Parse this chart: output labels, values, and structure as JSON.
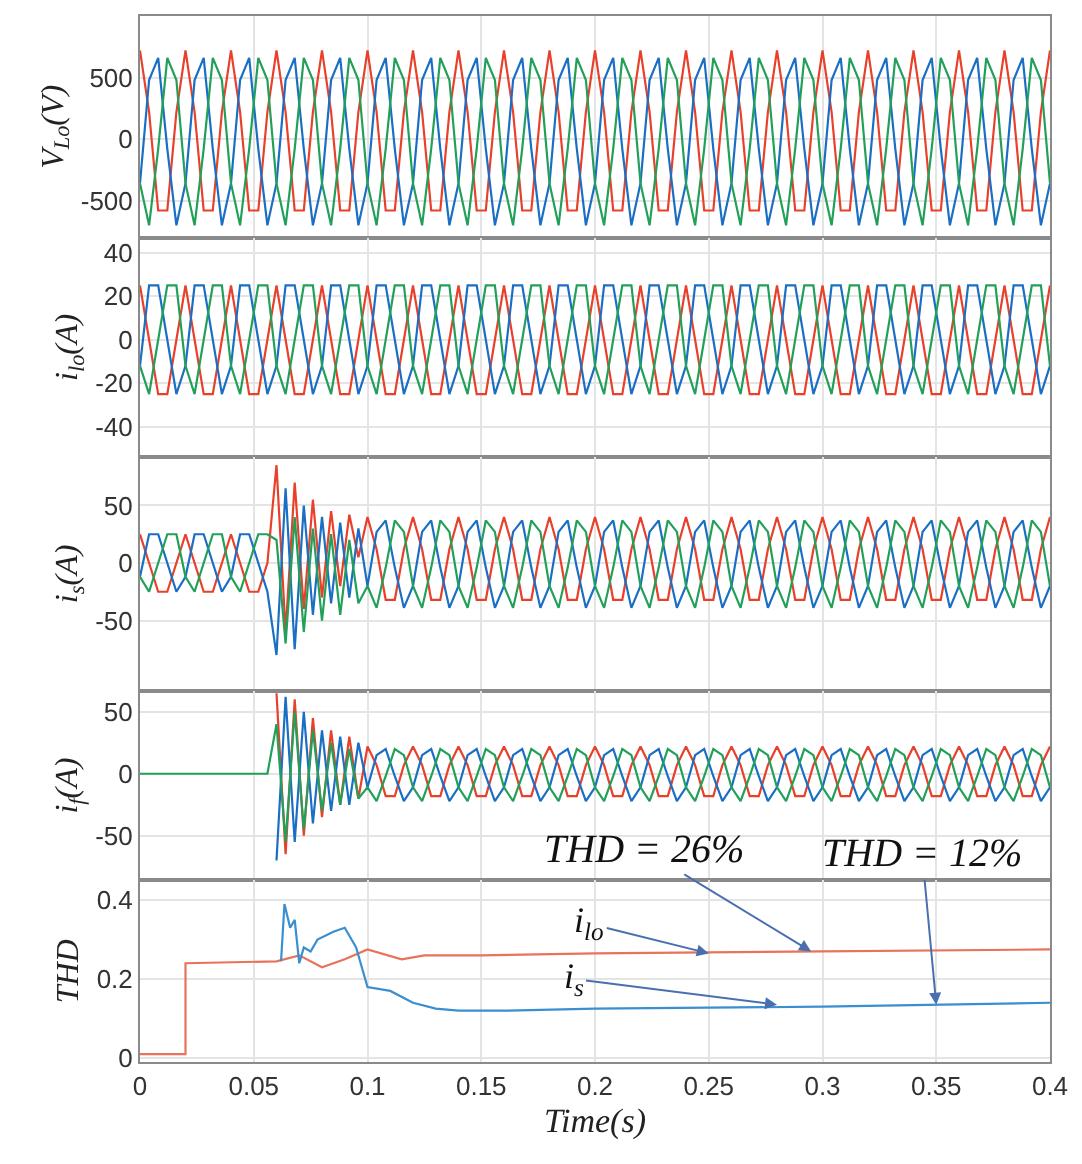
{
  "chart_data": [
    {
      "type": "line",
      "ylabel": "V$_{Lo}$(V)",
      "tick_labels": "y",
      "grid": true,
      "xlim": [
        0,
        0.4
      ],
      "xticks": [
        0,
        0.05,
        0.1,
        0.15,
        0.2,
        0.25,
        0.3,
        0.35,
        0.4
      ],
      "ylim": [
        -800,
        1000
      ],
      "yticks": [
        -500,
        0,
        500
      ],
      "x": [
        0,
        0.004,
        0.008,
        0.012,
        0.016,
        0.02,
        0.024,
        0.028,
        0.032,
        0.036,
        0.04,
        0.044,
        0.048,
        0.052,
        0.056,
        0.06,
        0.064,
        0.068,
        0.072,
        0.076,
        0.08,
        0.084,
        0.088,
        0.092,
        0.096,
        0.1,
        0.104,
        0.108,
        0.112,
        0.116,
        0.12,
        0.124,
        0.128,
        0.132,
        0.136,
        0.14,
        0.144,
        0.148,
        0.152,
        0.156,
        0.16,
        0.164,
        0.168,
        0.172,
        0.176,
        0.18,
        0.184,
        0.188,
        0.192,
        0.196,
        0.2,
        0.204,
        0.208,
        0.212,
        0.216,
        0.22,
        0.224,
        0.228,
        0.232,
        0.236,
        0.24,
        0.244,
        0.248,
        0.252,
        0.256,
        0.26,
        0.264,
        0.268,
        0.272,
        0.276,
        0.28,
        0.284,
        0.288,
        0.292,
        0.296,
        0.3,
        0.304,
        0.308,
        0.312,
        0.316,
        0.32,
        0.324,
        0.328,
        0.332,
        0.336,
        0.34,
        0.344,
        0.348,
        0.352,
        0.356,
        0.36,
        0.364,
        0.368,
        0.372,
        0.376,
        0.38,
        0.384,
        0.388,
        0.392,
        0.396,
        0.4
      ],
      "series": [
        {
          "color": "#e8402a",
          "values": [
            720,
            220,
            -580,
            -580,
            220,
            720,
            220,
            -580,
            -580,
            220,
            720,
            220,
            -580,
            -580,
            220,
            720,
            220,
            -580,
            -580,
            220,
            720,
            220,
            -580,
            -580,
            220,
            720,
            220,
            -580,
            -580,
            220,
            720,
            220,
            -580,
            -580,
            220,
            720,
            220,
            -580,
            -580,
            220,
            720,
            220,
            -580,
            -580,
            220,
            720,
            220,
            -580,
            -580,
            220,
            720,
            220,
            -580,
            -580,
            220,
            720,
            220,
            -580,
            -580,
            220,
            720,
            220,
            -580,
            -580,
            220,
            720,
            220,
            -580,
            -580,
            220,
            720,
            220,
            -580,
            -580,
            220,
            720,
            220,
            -580,
            -580,
            220,
            720,
            220,
            -580,
            -580,
            220,
            720,
            220,
            -580,
            -580,
            220,
            720,
            220,
            -580,
            -580,
            220,
            720,
            220,
            -580,
            -580,
            220,
            720
          ]
        },
        {
          "color": "#1a6fc4",
          "values": [
            -360,
            480,
            660,
            -80,
            -700,
            -360,
            480,
            660,
            -80,
            -700,
            -360,
            480,
            660,
            -80,
            -700,
            -360,
            480,
            660,
            -80,
            -700,
            -360,
            480,
            660,
            -80,
            -700,
            -360,
            480,
            660,
            -80,
            -700,
            -360,
            480,
            660,
            -80,
            -700,
            -360,
            480,
            660,
            -80,
            -700,
            -360,
            480,
            660,
            -80,
            -700,
            -360,
            480,
            660,
            -80,
            -700,
            -360,
            480,
            660,
            -80,
            -700,
            -360,
            480,
            660,
            -80,
            -700,
            -360,
            480,
            660,
            -80,
            -700,
            -360,
            480,
            660,
            -80,
            -700,
            -360,
            480,
            660,
            -80,
            -700,
            -360,
            480,
            660,
            -80,
            -700,
            -360,
            480,
            660,
            -80,
            -700,
            -360,
            480,
            660,
            -80,
            -700,
            -360,
            480,
            660,
            -80,
            -700,
            -360,
            480,
            660,
            -80,
            -700,
            -360
          ]
        },
        {
          "color": "#22a05a",
          "values": [
            -360,
            -700,
            -80,
            660,
            480,
            -360,
            -700,
            -80,
            660,
            480,
            -360,
            -700,
            -80,
            660,
            480,
            -360,
            -700,
            -80,
            660,
            480,
            -360,
            -700,
            -80,
            660,
            480,
            -360,
            -700,
            -80,
            660,
            480,
            -360,
            -700,
            -80,
            660,
            480,
            -360,
            -700,
            -80,
            660,
            480,
            -360,
            -700,
            -80,
            660,
            480,
            -360,
            -700,
            -80,
            660,
            480,
            -360,
            -700,
            -80,
            660,
            480,
            -360,
            -700,
            -80,
            660,
            480,
            -360,
            -700,
            -80,
            660,
            480,
            -360,
            -700,
            -80,
            660,
            480,
            -360,
            -700,
            -80,
            660,
            480,
            -360,
            -700,
            -80,
            660,
            480,
            -360,
            -700,
            -80,
            660,
            480,
            -360,
            -700,
            -80,
            660,
            480,
            -360,
            -700,
            -80,
            660,
            480,
            -360,
            -700,
            -80,
            660,
            480,
            -360
          ]
        }
      ]
    },
    {
      "type": "line",
      "ylabel": "i$_{lo}$(A)",
      "tick_labels": "y",
      "grid": true,
      "xlim": [
        0,
        0.4
      ],
      "xticks": [
        0,
        0.05,
        0.1,
        0.15,
        0.2,
        0.25,
        0.3,
        0.35,
        0.4
      ],
      "ylim": [
        -54,
        47
      ],
      "yticks": [
        -40,
        -20,
        0,
        20,
        40
      ],
      "x": [
        0,
        0.004,
        0.008,
        0.012,
        0.016,
        0.02,
        0.024,
        0.028,
        0.032,
        0.036,
        0.04,
        0.044,
        0.048,
        0.052,
        0.056,
        0.06,
        0.064,
        0.068,
        0.072,
        0.076,
        0.08,
        0.084,
        0.088,
        0.092,
        0.096,
        0.1,
        0.104,
        0.108,
        0.112,
        0.116,
        0.12,
        0.124,
        0.128,
        0.132,
        0.136,
        0.14,
        0.144,
        0.148,
        0.152,
        0.156,
        0.16,
        0.164,
        0.168,
        0.172,
        0.176,
        0.18,
        0.184,
        0.188,
        0.192,
        0.196,
        0.2,
        0.204,
        0.208,
        0.212,
        0.216,
        0.22,
        0.224,
        0.228,
        0.232,
        0.236,
        0.24,
        0.244,
        0.248,
        0.252,
        0.256,
        0.26,
        0.264,
        0.268,
        0.272,
        0.276,
        0.28,
        0.284,
        0.288,
        0.292,
        0.296,
        0.3,
        0.304,
        0.308,
        0.312,
        0.316,
        0.32,
        0.324,
        0.328,
        0.332,
        0.336,
        0.34,
        0.344,
        0.348,
        0.352,
        0.356,
        0.36,
        0.364,
        0.368,
        0.372,
        0.376,
        0.38,
        0.384,
        0.388,
        0.392,
        0.396,
        0.4
      ],
      "series": [
        {
          "color": "#e8402a",
          "values": [
            25,
            0,
            -25,
            -25,
            0,
            25,
            0,
            -25,
            -25,
            0,
            25,
            0,
            -25,
            -25,
            0,
            25,
            0,
            -25,
            -25,
            0,
            25,
            0,
            -25,
            -25,
            0,
            25,
            0,
            -25,
            -25,
            0,
            25,
            0,
            -25,
            -25,
            0,
            25,
            0,
            -25,
            -25,
            0,
            25,
            0,
            -25,
            -25,
            0,
            25,
            0,
            -25,
            -25,
            0,
            25,
            0,
            -25,
            -25,
            0,
            25,
            0,
            -25,
            -25,
            0,
            25,
            0,
            -25,
            -25,
            0,
            25,
            0,
            -25,
            -25,
            0,
            25,
            0,
            -25,
            -25,
            0,
            25,
            0,
            -25,
            -25,
            0,
            25,
            0,
            -25,
            -25,
            0,
            25,
            0,
            -25,
            -25,
            0,
            25,
            0,
            -25,
            -25,
            0,
            25,
            0,
            -25,
            -25,
            0,
            25
          ]
        },
        {
          "color": "#1a6fc4",
          "values": [
            -12,
            25,
            25,
            0,
            -25,
            -12,
            25,
            25,
            0,
            -25,
            -12,
            25,
            25,
            0,
            -25,
            -12,
            25,
            25,
            0,
            -25,
            -12,
            25,
            25,
            0,
            -25,
            -12,
            25,
            25,
            0,
            -25,
            -12,
            25,
            25,
            0,
            -25,
            -12,
            25,
            25,
            0,
            -25,
            -12,
            25,
            25,
            0,
            -25,
            -12,
            25,
            25,
            0,
            -25,
            -12,
            25,
            25,
            0,
            -25,
            -12,
            25,
            25,
            0,
            -25,
            -12,
            25,
            25,
            0,
            -25,
            -12,
            25,
            25,
            0,
            -25,
            -12,
            25,
            25,
            0,
            -25,
            -12,
            25,
            25,
            0,
            -25,
            -12,
            25,
            25,
            0,
            -25,
            -12,
            25,
            25,
            0,
            -25,
            -12,
            25,
            25,
            0,
            -25,
            -12,
            25,
            25,
            0,
            -25,
            -12
          ]
        },
        {
          "color": "#22a05a",
          "values": [
            -12,
            -25,
            0,
            25,
            25,
            -12,
            -25,
            0,
            25,
            25,
            -12,
            -25,
            0,
            25,
            25,
            -12,
            -25,
            0,
            25,
            25,
            -12,
            -25,
            0,
            25,
            25,
            -12,
            -25,
            0,
            25,
            25,
            -12,
            -25,
            0,
            25,
            25,
            -12,
            -25,
            0,
            25,
            25,
            -12,
            -25,
            0,
            25,
            25,
            -12,
            -25,
            0,
            25,
            25,
            -12,
            -25,
            0,
            25,
            25,
            -12,
            -25,
            0,
            25,
            25,
            -12,
            -25,
            0,
            25,
            25,
            -12,
            -25,
            0,
            25,
            25,
            -12,
            -25,
            0,
            25,
            25,
            -12,
            -25,
            0,
            25,
            25,
            -12,
            -25,
            0,
            25,
            25,
            -12,
            -25,
            0,
            25,
            25,
            -12,
            -25,
            0,
            25,
            25,
            -12,
            -25,
            0,
            25,
            25,
            -12
          ]
        }
      ]
    },
    {
      "type": "line",
      "ylabel": "i$_{s}$(A)",
      "tick_labels": "y",
      "grid": true,
      "xlim": [
        0,
        0.4
      ],
      "xticks": [
        0,
        0.05,
        0.1,
        0.15,
        0.2,
        0.25,
        0.3,
        0.35,
        0.4
      ],
      "ylim": [
        -111,
        92
      ],
      "yticks": [
        -50,
        0,
        50
      ],
      "x": [
        0,
        0.004,
        0.008,
        0.012,
        0.016,
        0.02,
        0.024,
        0.028,
        0.032,
        0.036,
        0.04,
        0.044,
        0.048,
        0.052,
        0.056,
        0.06,
        0.064,
        0.068,
        0.072,
        0.076,
        0.08,
        0.084,
        0.088,
        0.092,
        0.096,
        0.1,
        0.104,
        0.108,
        0.112,
        0.116,
        0.12,
        0.124,
        0.128,
        0.132,
        0.136,
        0.14,
        0.144,
        0.148,
        0.152,
        0.156,
        0.16,
        0.164,
        0.168,
        0.172,
        0.176,
        0.18,
        0.184,
        0.188,
        0.192,
        0.196,
        0.2,
        0.204,
        0.208,
        0.212,
        0.216,
        0.22,
        0.224,
        0.228,
        0.232,
        0.236,
        0.24,
        0.244,
        0.248,
        0.252,
        0.256,
        0.26,
        0.264,
        0.268,
        0.272,
        0.276,
        0.28,
        0.284,
        0.288,
        0.292,
        0.296,
        0.3,
        0.304,
        0.308,
        0.312,
        0.316,
        0.32,
        0.324,
        0.328,
        0.332,
        0.336,
        0.34,
        0.344,
        0.348,
        0.352,
        0.356,
        0.36,
        0.364,
        0.368,
        0.372,
        0.376,
        0.38,
        0.384,
        0.388,
        0.392,
        0.396,
        0.4
      ],
      "series": [
        {
          "color": "#e8402a",
          "values": [
            25,
            0,
            -25,
            -25,
            0,
            25,
            0,
            -25,
            -25,
            0,
            25,
            0,
            -25,
            -25,
            0,
            85,
            -60,
            70,
            -40,
            55,
            -30,
            45,
            -20,
            42,
            5,
            40,
            12,
            -32,
            -32,
            12,
            40,
            12,
            -32,
            -32,
            12,
            40,
            12,
            -32,
            -32,
            12,
            40,
            12,
            -32,
            -32,
            12,
            40,
            12,
            -32,
            -32,
            12,
            40,
            12,
            -32,
            -32,
            12,
            40,
            12,
            -32,
            -32,
            12,
            40,
            12,
            -32,
            -32,
            12,
            40,
            12,
            -32,
            -32,
            12,
            40,
            12,
            -32,
            -32,
            12,
            40,
            12,
            -32,
            -32,
            12,
            40,
            12,
            -32,
            -32,
            12,
            40,
            12,
            -32,
            -32,
            12,
            40,
            12,
            -32,
            -32,
            12,
            40,
            12,
            -32,
            -32,
            12,
            40
          ]
        },
        {
          "color": "#1a6fc4",
          "values": [
            -12,
            25,
            25,
            0,
            -25,
            -12,
            25,
            25,
            0,
            -25,
            -12,
            25,
            25,
            0,
            -25,
            -80,
            65,
            -75,
            50,
            -45,
            40,
            -35,
            35,
            -30,
            30,
            -20,
            27,
            37,
            -4,
            -39,
            -20,
            27,
            37,
            -4,
            -39,
            -20,
            27,
            37,
            -4,
            -39,
            -20,
            27,
            37,
            -4,
            -39,
            -20,
            27,
            37,
            -4,
            -39,
            -20,
            27,
            37,
            -4,
            -39,
            -20,
            27,
            37,
            -4,
            -39,
            -20,
            27,
            37,
            -4,
            -39,
            -20,
            27,
            37,
            -4,
            -39,
            -20,
            27,
            37,
            -4,
            -39,
            -20,
            27,
            37,
            -4,
            -39,
            -20,
            27,
            37,
            -4,
            -39,
            -20,
            27,
            37,
            -4,
            -39,
            -20,
            27,
            37,
            -4,
            -39,
            -20,
            27,
            37,
            -4,
            -39,
            -20
          ]
        },
        {
          "color": "#22a05a",
          "values": [
            -12,
            -25,
            0,
            25,
            25,
            -12,
            -25,
            0,
            25,
            25,
            -12,
            -25,
            0,
            25,
            25,
            20,
            -70,
            40,
            -60,
            30,
            -50,
            25,
            -45,
            20,
            -35,
            -20,
            -39,
            -4,
            37,
            27,
            -20,
            -39,
            -4,
            37,
            27,
            -20,
            -39,
            -4,
            37,
            27,
            -20,
            -39,
            -4,
            37,
            27,
            -20,
            -39,
            -4,
            37,
            27,
            -20,
            -39,
            -4,
            37,
            27,
            -20,
            -39,
            -4,
            37,
            27,
            -20,
            -39,
            -4,
            37,
            27,
            -20,
            -39,
            -4,
            37,
            27,
            -20,
            -39,
            -4,
            37,
            27,
            -20,
            -39,
            -4,
            37,
            27,
            -20,
            -39,
            -4,
            37,
            27,
            -20,
            -39,
            -4,
            37,
            27,
            -20,
            -39,
            -4,
            37,
            27,
            -20,
            -39,
            -4,
            37,
            27,
            -20
          ]
        }
      ]
    },
    {
      "type": "line",
      "ylabel": "i$_{f}$(A)",
      "tick_labels": "y",
      "grid": true,
      "xlim": [
        0,
        0.4
      ],
      "xticks": [
        0,
        0.05,
        0.1,
        0.15,
        0.2,
        0.25,
        0.3,
        0.35,
        0.4
      ],
      "ylim": [
        -86,
        67
      ],
      "yticks": [
        -50,
        0,
        50
      ],
      "x": [
        0,
        0.004,
        0.008,
        0.012,
        0.016,
        0.02,
        0.024,
        0.028,
        0.032,
        0.036,
        0.04,
        0.044,
        0.048,
        0.052,
        0.056,
        0.06,
        0.064,
        0.068,
        0.072,
        0.076,
        0.08,
        0.084,
        0.088,
        0.092,
        0.096,
        0.1,
        0.104,
        0.108,
        0.112,
        0.116,
        0.12,
        0.124,
        0.128,
        0.132,
        0.136,
        0.14,
        0.144,
        0.148,
        0.152,
        0.156,
        0.16,
        0.164,
        0.168,
        0.172,
        0.176,
        0.18,
        0.184,
        0.188,
        0.192,
        0.196,
        0.2,
        0.204,
        0.208,
        0.212,
        0.216,
        0.22,
        0.224,
        0.228,
        0.232,
        0.236,
        0.24,
        0.244,
        0.248,
        0.252,
        0.256,
        0.26,
        0.264,
        0.268,
        0.272,
        0.276,
        0.28,
        0.284,
        0.288,
        0.292,
        0.296,
        0.3,
        0.304,
        0.308,
        0.312,
        0.316,
        0.32,
        0.324,
        0.328,
        0.332,
        0.336,
        0.34,
        0.344,
        0.348,
        0.352,
        0.356,
        0.36,
        0.364,
        0.368,
        0.372,
        0.376,
        0.38,
        0.384,
        0.388,
        0.392,
        0.396,
        0.4
      ],
      "series": [
        {
          "color": "#e8402a",
          "values": [
            null,
            null,
            null,
            null,
            null,
            null,
            null,
            null,
            null,
            null,
            null,
            null,
            null,
            null,
            null,
            65,
            -65,
            60,
            -50,
            45,
            -35,
            35,
            -25,
            30,
            -20,
            22,
            7,
            -18,
            -18,
            7,
            22,
            7,
            -18,
            -18,
            7,
            22,
            7,
            -18,
            -18,
            7,
            22,
            7,
            -18,
            -18,
            7,
            22,
            7,
            -18,
            -18,
            7,
            22,
            7,
            -18,
            -18,
            7,
            22,
            7,
            -18,
            -18,
            7,
            22,
            7,
            -18,
            -18,
            7,
            22,
            7,
            -18,
            -18,
            7,
            22,
            7,
            -18,
            -18,
            7,
            22,
            7,
            -18,
            -18,
            7,
            22,
            7,
            -18,
            -18,
            7,
            22,
            7,
            -18,
            -18,
            7,
            22,
            7,
            -18,
            -18,
            7,
            22,
            7,
            -18,
            -18,
            7,
            22
          ]
        },
        {
          "color": "#1a6fc4",
          "values": [
            null,
            null,
            null,
            null,
            null,
            null,
            null,
            null,
            null,
            null,
            null,
            null,
            null,
            null,
            null,
            -70,
            62,
            -55,
            50,
            -40,
            35,
            -30,
            30,
            -25,
            25,
            -11,
            15,
            20,
            -2,
            -22,
            -11,
            15,
            20,
            -2,
            -22,
            -11,
            15,
            20,
            -2,
            -22,
            -11,
            15,
            20,
            -2,
            -22,
            -11,
            15,
            20,
            -2,
            -22,
            -11,
            15,
            20,
            -2,
            -22,
            -11,
            15,
            20,
            -2,
            -22,
            -11,
            15,
            20,
            -2,
            -22,
            -11,
            15,
            20,
            -2,
            -22,
            -11,
            15,
            20,
            -2,
            -22,
            -11,
            15,
            20,
            -2,
            -22,
            -11,
            15,
            20,
            -2,
            -22,
            -11,
            15,
            20,
            -2,
            -22,
            -11,
            15,
            20,
            -2,
            -22,
            -11,
            15,
            20,
            -2,
            -22,
            -11
          ]
        },
        {
          "color": "#22a05a",
          "values": [
            0,
            0,
            0,
            0,
            0,
            0,
            0,
            0,
            0,
            0,
            0,
            0,
            0,
            0,
            0,
            40,
            -55,
            50,
            -45,
            35,
            -30,
            25,
            -25,
            20,
            -20,
            -11,
            -22,
            -2,
            20,
            15,
            -11,
            -22,
            -2,
            20,
            15,
            -11,
            -22,
            -2,
            20,
            15,
            -11,
            -22,
            -2,
            20,
            15,
            -11,
            -22,
            -2,
            20,
            15,
            -11,
            -22,
            -2,
            20,
            15,
            -11,
            -22,
            -2,
            20,
            15,
            -11,
            -22,
            -2,
            20,
            15,
            -11,
            -22,
            -2,
            20,
            15,
            -11,
            -22,
            -2,
            20,
            15,
            -11,
            -22,
            -2,
            20,
            15,
            -11,
            -22,
            -2,
            20,
            15,
            -11,
            -22,
            -2,
            20,
            15,
            -11,
            -22,
            -2,
            20,
            15,
            -11,
            -22,
            -2,
            20,
            15,
            -11
          ]
        }
      ]
    },
    {
      "type": "line",
      "ylabel": "THD",
      "xlabel": "Time(s)",
      "grid": true,
      "xlim": [
        0,
        0.4
      ],
      "xticks": [
        0,
        0.05,
        0.1,
        0.15,
        0.2,
        0.25,
        0.3,
        0.35,
        0.4
      ],
      "ylim": [
        -0.01,
        0.45
      ],
      "yticks": [
        0,
        0.2,
        0.4
      ],
      "series": [
        {
          "color": "#e8735a",
          "x": [
            0,
            0.02,
            0.02,
            0.06,
            0.07,
            0.08,
            0.09,
            0.1,
            0.115,
            0.125,
            0.15,
            0.2,
            0.3,
            0.4
          ],
          "values": [
            0.01,
            0.01,
            0.24,
            0.245,
            0.26,
            0.23,
            0.25,
            0.275,
            0.25,
            0.26,
            0.26,
            0.265,
            0.27,
            0.275
          ]
        },
        {
          "color": "#3a8fd0",
          "x": [
            0.062,
            0.0635,
            0.066,
            0.068,
            0.07,
            0.072,
            0.075,
            0.078,
            0.085,
            0.09,
            0.095,
            0.1,
            0.11,
            0.12,
            0.13,
            0.14,
            0.16,
            0.2,
            0.3,
            0.4
          ],
          "values": [
            0.245,
            0.39,
            0.33,
            0.35,
            0.24,
            0.28,
            0.27,
            0.3,
            0.32,
            0.33,
            0.28,
            0.18,
            0.17,
            0.14,
            0.125,
            0.12,
            0.12,
            0.125,
            0.13,
            0.14
          ]
        }
      ],
      "annotations": [
        {
          "text": "THD = 26%",
          "x": 0.295,
          "y": 0.27
        },
        {
          "text": "THD = 12%",
          "x": 0.35,
          "y": 0.135
        },
        {
          "text": "i$_{lo}$",
          "x": 0.25,
          "y": 0.265
        },
        {
          "text": "i$_{s}$",
          "x": 0.28,
          "y": 0.135
        }
      ]
    }
  ]
}
